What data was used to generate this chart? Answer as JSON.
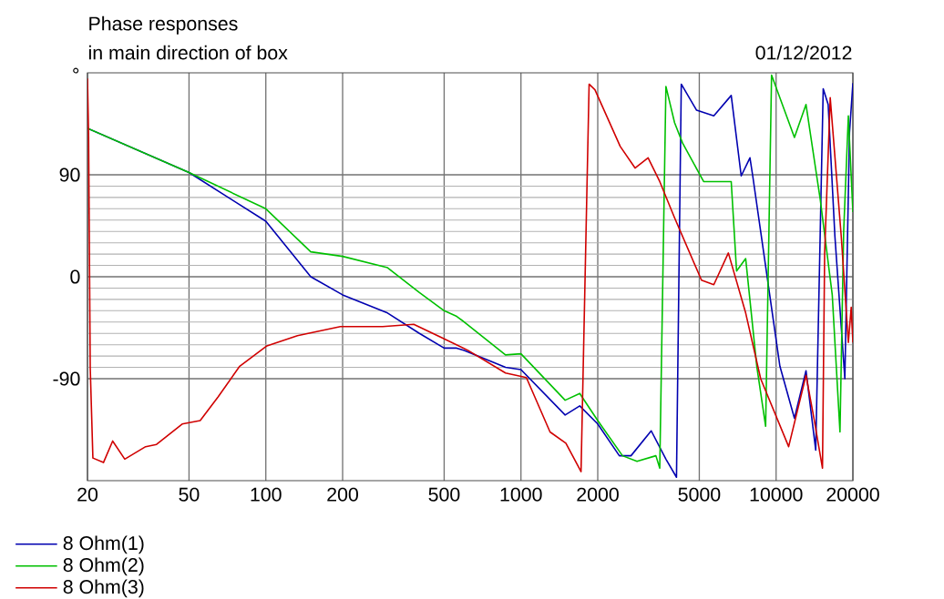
{
  "chart_data": {
    "type": "line",
    "title": "Phase responses",
    "subtitle": "in main direction of box",
    "ylabel": "°",
    "annotations": [
      "01/12/2012"
    ],
    "log": "x",
    "grid": true,
    "legend": "bottom left",
    "marker": "none",
    "line_style": "solid",
    "xlim": [
      20,
      20000
    ],
    "xticks": [
      20,
      50,
      100,
      200,
      500,
      1000,
      2000,
      5000,
      10000,
      20000
    ],
    "ylim": [
      -180,
      180
    ],
    "yticks": [
      -90,
      0,
      90
    ],
    "series": [
      {
        "name": "8 Ohm(1)",
        "color": "#0000b0",
        "x": [
          20,
          50,
          100,
          150,
          200,
          300,
          400,
          500,
          560,
          600,
          870,
          1000,
          1490,
          1700,
          2000,
          2430,
          2700,
          3240,
          3700,
          4070,
          4250,
          4880,
          5700,
          6670,
          7300,
          7900,
          8100,
          10350,
          11800,
          13100,
          14300,
          15300,
          16000,
          17000,
          18600,
          19400,
          20000
        ],
        "values": [
          131,
          92,
          49,
          0,
          -16,
          -32,
          -50,
          -63,
          -63,
          -65,
          -80,
          -82,
          -122,
          -114,
          -130,
          -158,
          -158,
          -136,
          -161,
          -177,
          170,
          147,
          142,
          160,
          89,
          105,
          89,
          -79,
          -125,
          -83,
          -153,
          166,
          152,
          36,
          -90,
          127,
          171
        ]
      },
      {
        "name": "8 Ohm(2)",
        "color": "#00c000",
        "x": [
          20,
          50,
          100,
          150,
          200,
          300,
          400,
          500,
          560,
          600,
          870,
          1000,
          1490,
          1700,
          2000,
          2500,
          2850,
          3380,
          3500,
          3700,
          4000,
          4300,
          5200,
          6670,
          7000,
          7600,
          8400,
          9100,
          9600,
          11800,
          13100,
          14900,
          16600,
          17800,
          18400,
          19200,
          20000
        ],
        "values": [
          131,
          92,
          60,
          22,
          18,
          8,
          -14,
          -30,
          -35,
          -40,
          -69,
          -68,
          -109,
          -103,
          -127,
          -158,
          -163,
          -158,
          -169,
          168,
          136,
          118,
          84,
          84,
          5,
          16,
          -79,
          -132,
          178,
          123,
          152,
          68,
          -16,
          -137,
          40,
          142,
          57
        ]
      },
      {
        "name": "8 Ohm(3)",
        "color": "#d00000",
        "x": [
          20,
          20.2,
          20.5,
          21,
          23.1,
          25.1,
          28,
          33.8,
          37.3,
          47,
          55.3,
          65,
          79,
          101,
          133,
          196,
          287,
          380,
          492,
          620,
          870,
          1050,
          1300,
          1500,
          1720,
          1850,
          1950,
          2450,
          2800,
          3150,
          3500,
          4000,
          5100,
          5700,
          6500,
          7600,
          8700,
          11200,
          13100,
          14100,
          15200,
          15500,
          16300,
          18000,
          19200,
          19700,
          20000
        ],
        "values": [
          175,
          125,
          -80,
          -160,
          -164,
          -145,
          -161,
          -150,
          -148,
          -130,
          -127,
          -106,
          -79,
          -61,
          -52,
          -44,
          -44,
          -42,
          -54,
          -65,
          -85,
          -89,
          -137,
          -147,
          -172,
          170,
          165,
          115,
          96,
          105,
          84,
          52,
          -3,
          -7,
          21,
          -32,
          -90,
          -150,
          -87,
          -126,
          -169,
          21,
          158,
          36,
          -58,
          -27,
          -58
        ]
      }
    ]
  }
}
